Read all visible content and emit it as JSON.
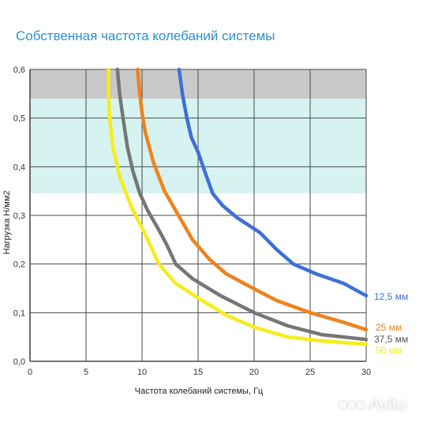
{
  "chart_data": {
    "type": "line",
    "title": "Собственная частота колебаний системы",
    "xlabel": "Частота колебаний системы, Гц",
    "ylabel": "Нагрузка Н/мм2",
    "xlim": [
      0,
      30
    ],
    "ylim": [
      0,
      0.6
    ],
    "x_ticks": [
      "0",
      "5",
      "10",
      "15",
      "20",
      "25",
      "30"
    ],
    "y_ticks": [
      "0,0",
      "0,1",
      "0,2",
      "0,3",
      "0,4",
      "0,5",
      "0,6"
    ],
    "grid": true,
    "bands": [
      {
        "from": 0.54,
        "to": 0.6,
        "color": "#c9c9c9"
      },
      {
        "from": 0.345,
        "to": 0.54,
        "color": "#d6f3f1"
      }
    ],
    "series": [
      {
        "name": "12,5 мм",
        "color": "#3f6fd8",
        "points": [
          [
            13.3,
            0.6
          ],
          [
            13.6,
            0.55
          ],
          [
            14.0,
            0.5
          ],
          [
            14.4,
            0.46
          ],
          [
            15.0,
            0.43
          ],
          [
            15.6,
            0.39
          ],
          [
            16.3,
            0.345
          ],
          [
            17.2,
            0.32
          ],
          [
            18.5,
            0.295
          ],
          [
            20.5,
            0.265
          ],
          [
            22.0,
            0.23
          ],
          [
            23.5,
            0.2
          ],
          [
            25.5,
            0.18
          ],
          [
            28.0,
            0.16
          ],
          [
            30.0,
            0.135
          ]
        ]
      },
      {
        "name": "25 мм",
        "color": "#f0821e",
        "points": [
          [
            9.6,
            0.6
          ],
          [
            9.8,
            0.55
          ],
          [
            10.0,
            0.51
          ],
          [
            10.3,
            0.47
          ],
          [
            11.0,
            0.41
          ],
          [
            12.0,
            0.35
          ],
          [
            13.0,
            0.31
          ],
          [
            14.5,
            0.25
          ],
          [
            16.0,
            0.21
          ],
          [
            17.5,
            0.18
          ],
          [
            19.5,
            0.155
          ],
          [
            22.0,
            0.125
          ],
          [
            25.0,
            0.1
          ],
          [
            28.0,
            0.08
          ],
          [
            30.0,
            0.065
          ]
        ]
      },
      {
        "name": "37,5 мм",
        "color": "#767676",
        "points": [
          [
            7.8,
            0.6
          ],
          [
            8.0,
            0.55
          ],
          [
            8.3,
            0.5
          ],
          [
            8.7,
            0.44
          ],
          [
            9.2,
            0.39
          ],
          [
            9.8,
            0.345
          ],
          [
            10.5,
            0.31
          ],
          [
            11.5,
            0.27
          ],
          [
            12.2,
            0.24
          ],
          [
            13.0,
            0.2
          ],
          [
            14.5,
            0.17
          ],
          [
            17.0,
            0.135
          ],
          [
            20.0,
            0.1
          ],
          [
            23.0,
            0.073
          ],
          [
            26.0,
            0.055
          ],
          [
            30.0,
            0.045
          ]
        ]
      },
      {
        "name": "50 мм",
        "color": "#f5ec1c",
        "points": [
          [
            7.0,
            0.6
          ],
          [
            7.0,
            0.55
          ],
          [
            7.1,
            0.5
          ],
          [
            7.4,
            0.44
          ],
          [
            8.0,
            0.38
          ],
          [
            9.0,
            0.32
          ],
          [
            10.3,
            0.26
          ],
          [
            11.5,
            0.2
          ],
          [
            13.0,
            0.16
          ],
          [
            15.0,
            0.13
          ],
          [
            17.5,
            0.095
          ],
          [
            20.0,
            0.07
          ],
          [
            23.0,
            0.05
          ],
          [
            26.0,
            0.042
          ],
          [
            30.0,
            0.035
          ]
        ]
      }
    ]
  },
  "watermark": {
    "brand": "Avito",
    "dots": "●●●"
  }
}
